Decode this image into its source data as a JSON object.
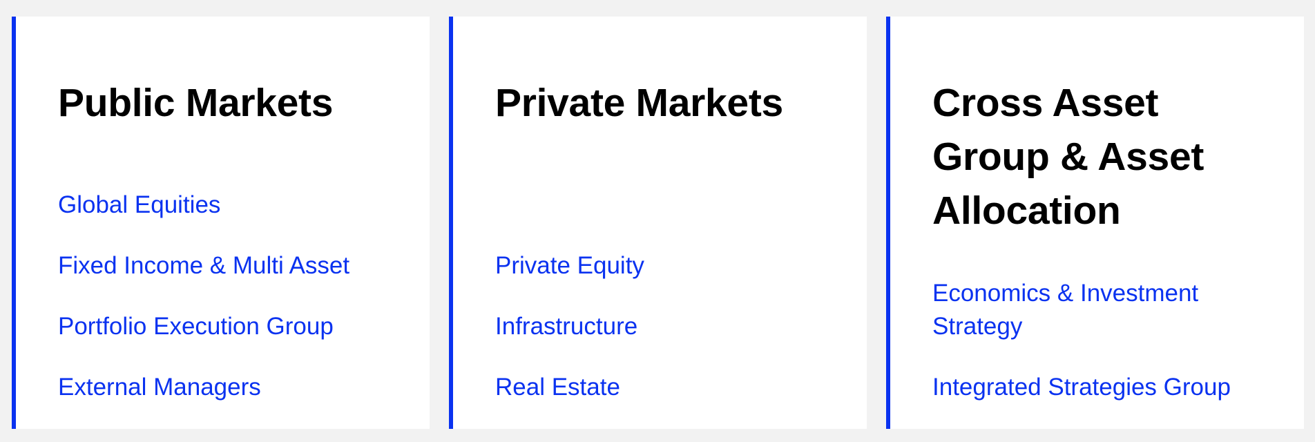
{
  "cards": [
    {
      "title": "Public Markets",
      "links": [
        "Global Equities",
        "Fixed Income & Multi Asset",
        "Portfolio Execution Group",
        "External Managers"
      ]
    },
    {
      "title": "Private Markets",
      "links": [
        "Private Equity",
        "Infrastructure",
        "Real Estate"
      ]
    },
    {
      "title": "Cross Asset Group & Asset Allocation",
      "links": [
        "Economics & Investment Strategy",
        "Integrated Strategies Group"
      ]
    }
  ],
  "colors": {
    "accent": "#0a32f0",
    "page_background": "#f2f2f2",
    "card_background": "#ffffff",
    "title_text": "#000000"
  }
}
